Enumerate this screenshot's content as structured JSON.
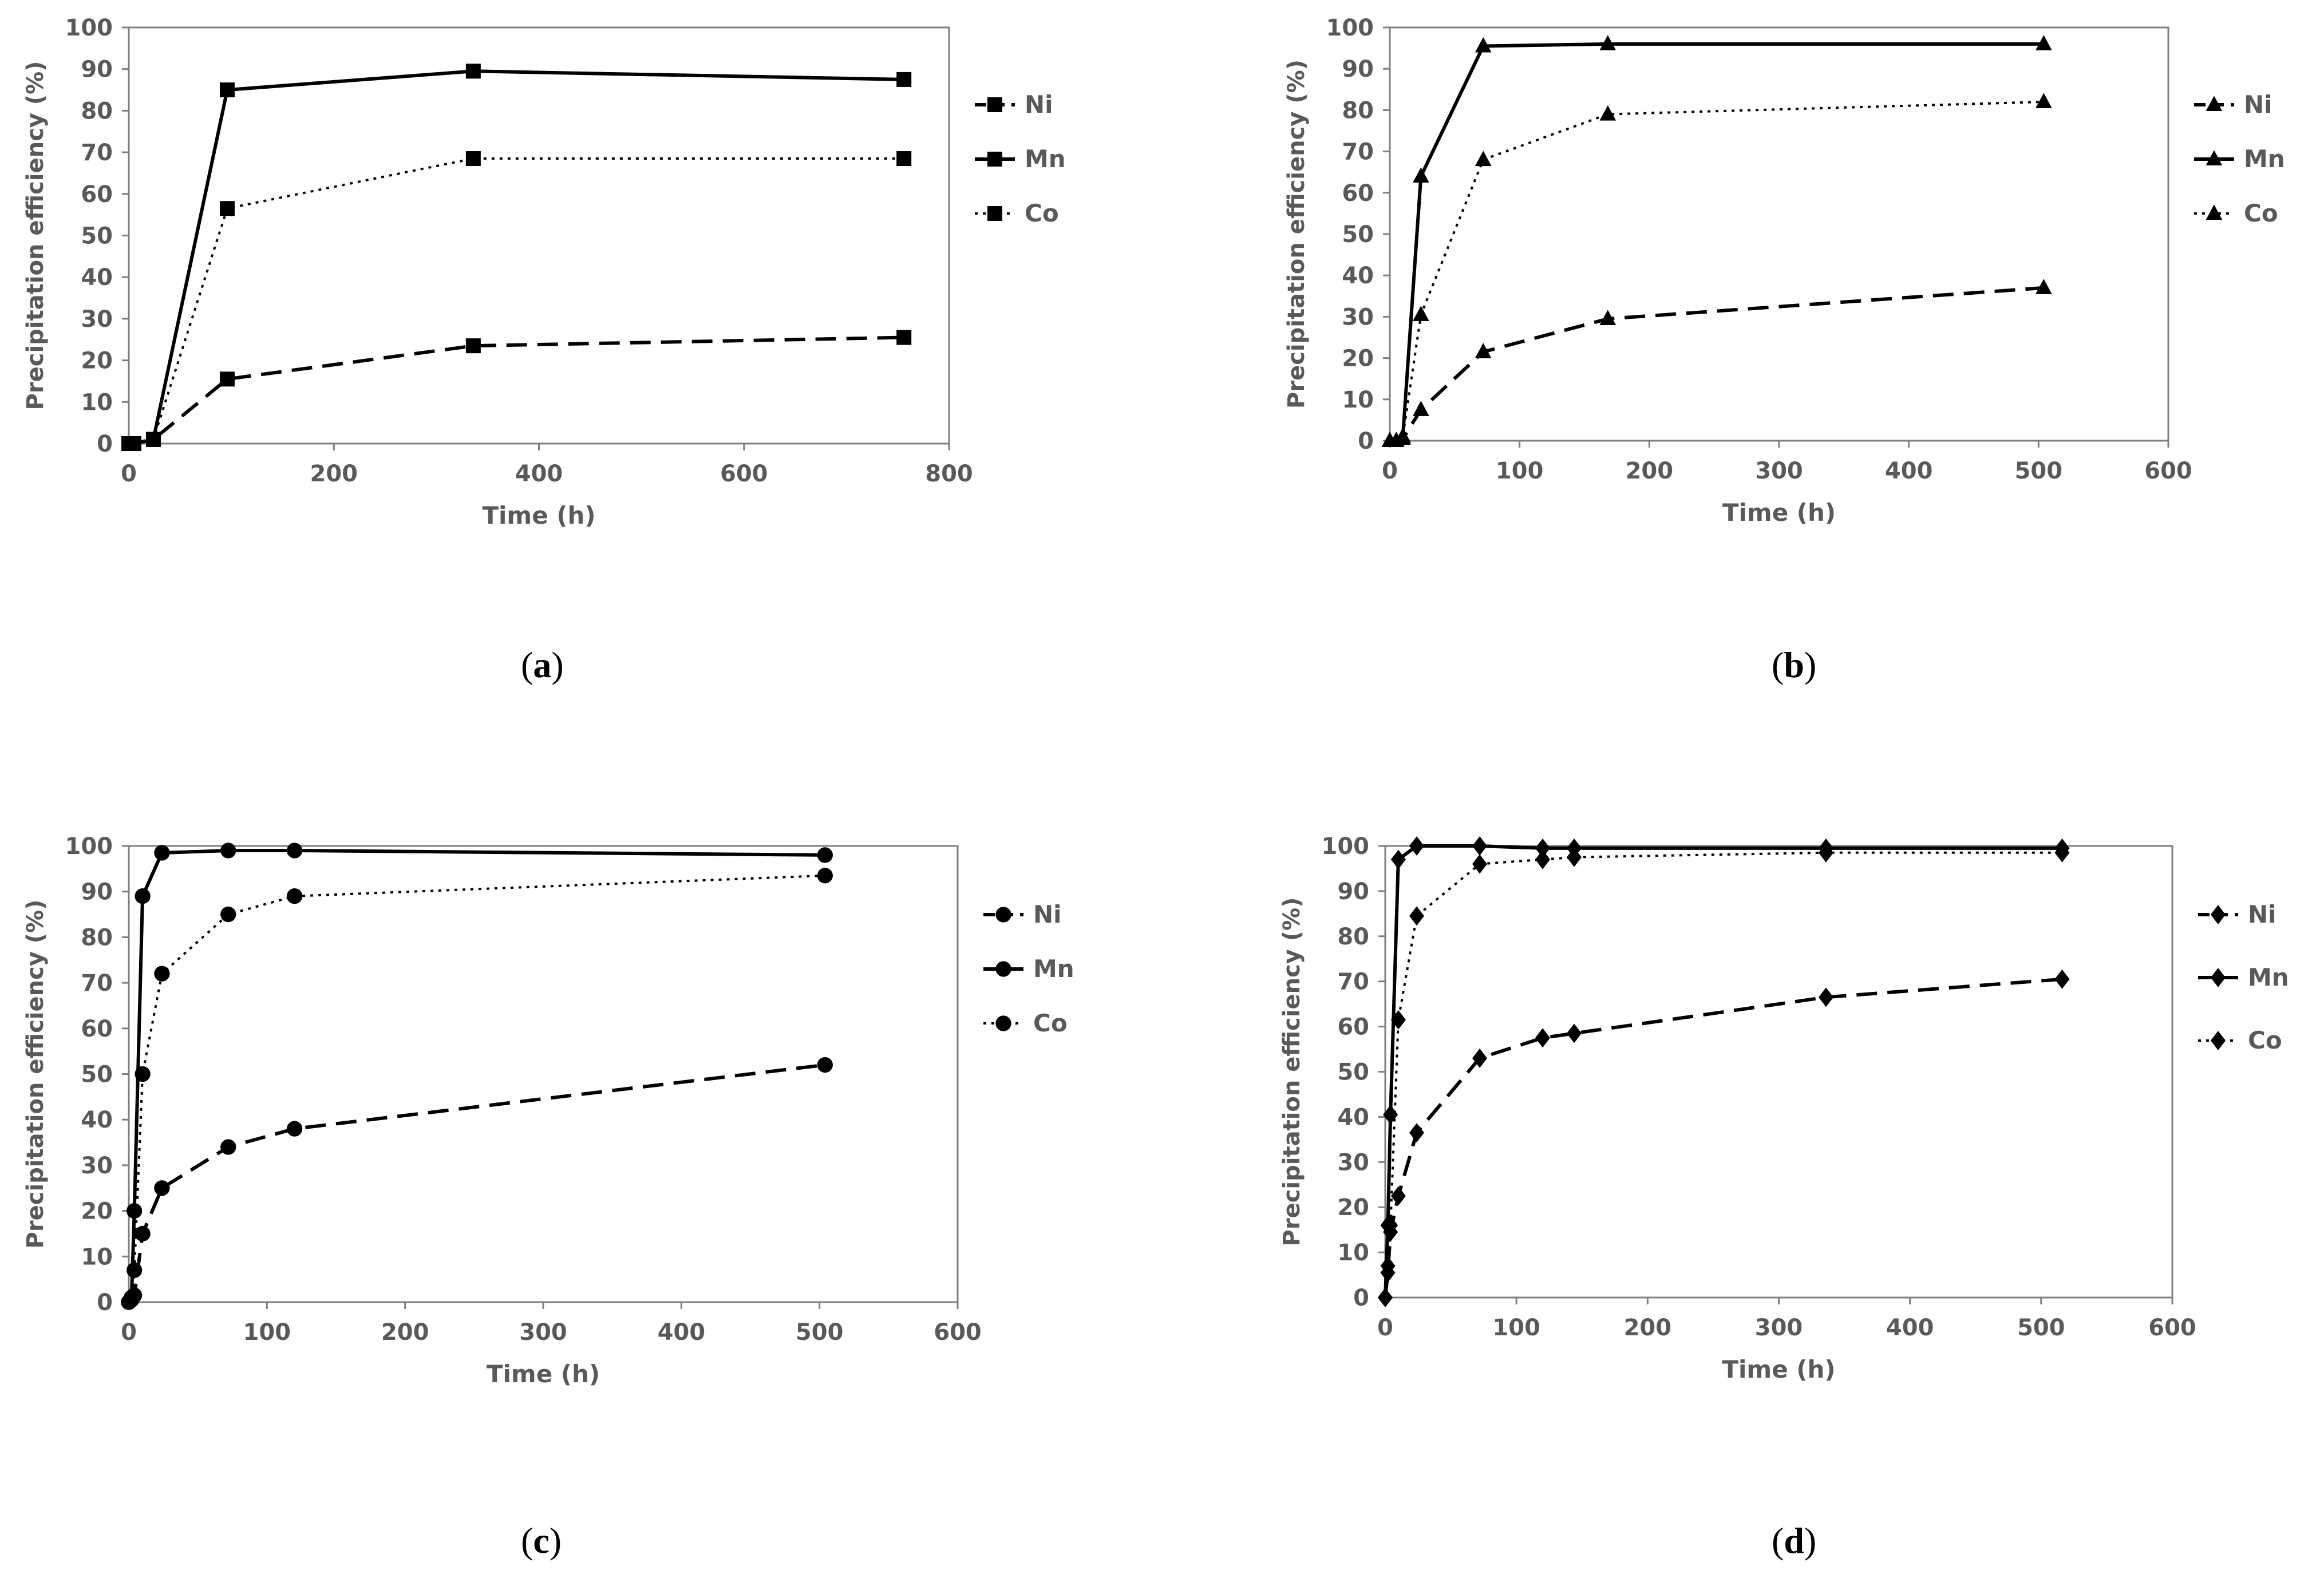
{
  "figure": {
    "panels": [
      "a",
      "b",
      "c",
      "d"
    ]
  },
  "chart_data": [
    {
      "panel": "a",
      "type": "line",
      "marker": "square",
      "title": "",
      "xlabel": "Time (h)",
      "ylabel": "Precipitation efficiency (%)",
      "xlim": [
        0,
        800
      ],
      "ylim": [
        0,
        100
      ],
      "xticks": [
        0,
        200,
        400,
        600,
        800
      ],
      "yticks": [
        0,
        10,
        20,
        30,
        40,
        50,
        60,
        70,
        80,
        90,
        100
      ],
      "grid": false,
      "legend": "right",
      "series": [
        {
          "name": "Ni",
          "dash": "dashed",
          "x": [
            0,
            5,
            24,
            96,
            336,
            756
          ],
          "y": [
            0,
            0,
            1,
            15.5,
            23.5,
            25.5
          ]
        },
        {
          "name": "Mn",
          "dash": "solid",
          "x": [
            0,
            5,
            24,
            96,
            336,
            756
          ],
          "y": [
            0,
            0,
            1,
            85,
            89.5,
            87.5
          ]
        },
        {
          "name": "Co",
          "dash": "dotted",
          "x": [
            0,
            5,
            24,
            96,
            336,
            756
          ],
          "y": [
            0,
            0,
            1,
            56.5,
            68.5,
            68.5
          ]
        }
      ]
    },
    {
      "panel": "b",
      "type": "line",
      "marker": "triangle",
      "title": "",
      "xlabel": "Time (h)",
      "ylabel": "Precipitation efficiency (%)",
      "xlim": [
        0,
        600
      ],
      "ylim": [
        0,
        100
      ],
      "xticks": [
        0,
        100,
        200,
        300,
        400,
        500,
        600
      ],
      "yticks": [
        0,
        10,
        20,
        30,
        40,
        50,
        60,
        70,
        80,
        90,
        100
      ],
      "grid": false,
      "legend": "right",
      "series": [
        {
          "name": "Ni",
          "dash": "dashed",
          "x": [
            0,
            5,
            10,
            24,
            72,
            168,
            504
          ],
          "y": [
            0,
            0,
            0.5,
            7.5,
            21.5,
            29.5,
            37
          ]
        },
        {
          "name": "Mn",
          "dash": "solid",
          "x": [
            0,
            5,
            10,
            24,
            72,
            168,
            504
          ],
          "y": [
            0,
            0,
            1,
            64,
            95.5,
            96,
            96
          ]
        },
        {
          "name": "Co",
          "dash": "dotted",
          "x": [
            0,
            5,
            10,
            24,
            72,
            168,
            504
          ],
          "y": [
            0,
            0,
            1,
            30.5,
            68,
            79,
            82
          ]
        }
      ]
    },
    {
      "panel": "c",
      "type": "line",
      "marker": "circle",
      "title": "",
      "xlabel": "Time (h)",
      "ylabel": "Precipitation efficiency (%)",
      "xlim": [
        0,
        600
      ],
      "ylim": [
        0,
        100
      ],
      "xticks": [
        0,
        100,
        200,
        300,
        400,
        500,
        600
      ],
      "yticks": [
        0,
        10,
        20,
        30,
        40,
        50,
        60,
        70,
        80,
        90,
        100
      ],
      "grid": false,
      "legend": "right",
      "series": [
        {
          "name": "Ni",
          "dash": "dashed",
          "x": [
            0,
            2,
            4,
            10,
            24,
            72,
            120,
            504
          ],
          "y": [
            0,
            0.5,
            1.5,
            15,
            25,
            34,
            38,
            52
          ]
        },
        {
          "name": "Mn",
          "dash": "solid",
          "x": [
            0,
            2,
            4,
            10,
            24,
            72,
            120,
            504
          ],
          "y": [
            0,
            1,
            20,
            89,
            98.5,
            99,
            99,
            98
          ]
        },
        {
          "name": "Co",
          "dash": "dotted",
          "x": [
            0,
            2,
            4,
            10,
            24,
            72,
            120,
            504
          ],
          "y": [
            0,
            1,
            7,
            50,
            72,
            85,
            89,
            93.5
          ]
        }
      ]
    },
    {
      "panel": "d",
      "type": "line",
      "marker": "diamond",
      "title": "",
      "xlabel": "Time (h)",
      "ylabel": "Precipitation efficiency (%)",
      "xlim": [
        0,
        600
      ],
      "ylim": [
        0,
        100
      ],
      "xticks": [
        0,
        100,
        200,
        300,
        400,
        500,
        600
      ],
      "yticks": [
        0,
        10,
        20,
        30,
        40,
        50,
        60,
        70,
        80,
        90,
        100
      ],
      "grid": false,
      "legend": "right",
      "series": [
        {
          "name": "Ni",
          "dash": "dashed",
          "x": [
            0,
            2,
            4,
            10,
            24,
            72,
            120,
            144,
            336,
            516
          ],
          "y": [
            0,
            5.5,
            14.5,
            22.5,
            36.5,
            53,
            57.5,
            58.5,
            66.5,
            70.5
          ]
        },
        {
          "name": "Mn",
          "dash": "solid",
          "x": [
            0,
            2,
            4,
            10,
            24,
            72,
            120,
            144,
            336,
            516
          ],
          "y": [
            0,
            16,
            40.5,
            97,
            100,
            100,
            99.5,
            99.5,
            99.5,
            99.5
          ]
        },
        {
          "name": "Co",
          "dash": "dotted",
          "x": [
            0,
            2,
            4,
            10,
            24,
            72,
            120,
            144,
            336,
            516
          ],
          "y": [
            0,
            7,
            16,
            61.5,
            84.5,
            96,
            97,
            97.5,
            98.5,
            98.5
          ]
        }
      ]
    }
  ]
}
